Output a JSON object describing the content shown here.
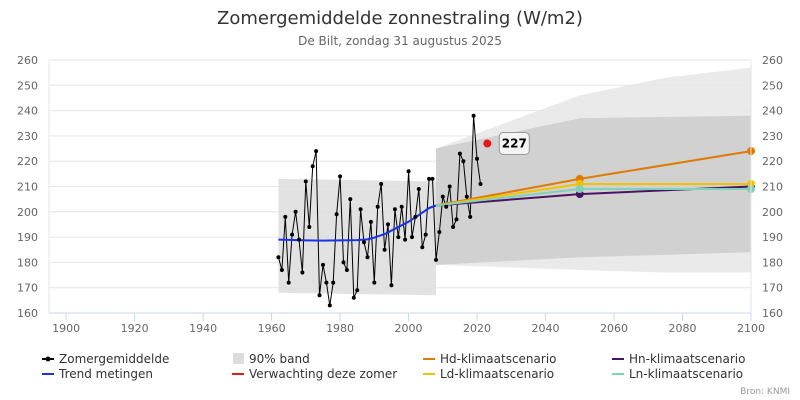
{
  "chart_data": {
    "type": "line",
    "title": "Zomergemiddelde zonnestraling (W/m2)",
    "subtitle": "De Bilt, zondag 31 augustus 2025",
    "xlim": [
      1895,
      2100
    ],
    "ylim": [
      160,
      260
    ],
    "x_ticks": [
      1900,
      1920,
      1940,
      1960,
      1980,
      2000,
      2020,
      2040,
      2060,
      2080,
      2100
    ],
    "y_ticks": [
      160,
      170,
      180,
      190,
      200,
      210,
      220,
      230,
      240,
      250,
      260
    ],
    "series": [
      {
        "name": "Zomergemiddelde",
        "color": "#000000",
        "x": [
          1962,
          1963,
          1964,
          1965,
          1966,
          1967,
          1968,
          1969,
          1970,
          1971,
          1972,
          1973,
          1974,
          1975,
          1976,
          1977,
          1978,
          1979,
          1980,
          1981,
          1982,
          1983,
          1984,
          1985,
          1986,
          1987,
          1988,
          1989,
          1990,
          1991,
          1992,
          1993,
          1994,
          1995,
          1996,
          1997,
          1998,
          1999,
          2000,
          2001,
          2002,
          2003,
          2004,
          2005,
          2006,
          2007,
          2008,
          2009,
          2010,
          2011,
          2012,
          2013,
          2014,
          2015,
          2016,
          2017,
          2018,
          2019,
          2020,
          2021,
          2022
        ],
        "values": [
          182,
          177,
          198,
          172,
          191,
          200,
          189,
          176,
          212,
          194,
          218,
          224,
          167,
          179,
          172,
          163,
          172,
          199,
          214,
          180,
          177,
          205,
          166,
          169,
          201,
          188,
          182,
          196,
          172,
          202,
          211,
          185,
          195,
          171,
          201,
          190,
          202,
          189,
          216,
          190,
          198,
          209,
          186,
          191,
          213,
          213,
          181,
          192,
          206,
          202,
          210,
          194,
          197,
          223,
          220,
          206,
          198,
          238,
          221,
          211,
          null
        ]
      },
      {
        "name": "Trend metingen",
        "color": "#1a33e6",
        "x": [
          1962,
          1965,
          1970,
          1975,
          1980,
          1985,
          1988,
          1990,
          1993,
          1996,
          2000,
          2003,
          2006,
          2008
        ],
        "values": [
          189,
          188.9,
          188.7,
          188.6,
          188.7,
          188.8,
          189.1,
          189.8,
          191.2,
          193.3,
          196.1,
          198.7,
          201.5,
          202.5
        ]
      },
      {
        "name": "Hd-klimaatscenario",
        "color": "#e07b00",
        "x": [
          2008,
          2050,
          2100
        ],
        "values": [
          202.5,
          213,
          224
        ]
      },
      {
        "name": "Hn-klimaatscenario",
        "color": "#4b1463",
        "x": [
          2008,
          2050,
          2100
        ],
        "values": [
          202.5,
          207,
          210
        ]
      },
      {
        "name": "Ld-klimaatscenario",
        "color": "#f2c200",
        "x": [
          2008,
          2050,
          2100
        ],
        "values": [
          202.5,
          211,
          211
        ]
      },
      {
        "name": "Ln-klimaatscenario",
        "color": "#7fd1b9",
        "x": [
          2008,
          2050,
          2100
        ],
        "values": [
          202.5,
          209,
          209
        ]
      }
    ],
    "bands": [
      {
        "name": "90% band metingen",
        "color": "#dddddd",
        "x": [
          1962,
          2008
        ],
        "lower": [
          168,
          167
        ],
        "upper": [
          213,
          212
        ]
      },
      {
        "name": "90% band scenario",
        "color": "#cccccc",
        "x": [
          2008,
          2050,
          2100
        ],
        "lower": [
          179,
          182,
          184
        ],
        "upper": [
          225,
          237,
          238
        ]
      },
      {
        "name": "90% band scenario (wide)",
        "color": "#e6e6e6",
        "x": [
          2008,
          2030,
          2050,
          2075,
          2100
        ],
        "lower": [
          179,
          178,
          177,
          176,
          176
        ],
        "upper": [
          225,
          236,
          246,
          253,
          257
        ]
      }
    ],
    "forecast": {
      "name": "Verwachting deze zomer",
      "color": "#e31a1c",
      "x": 2023,
      "value": 227,
      "label": "227"
    },
    "legend": [
      {
        "label": "Zomergemiddelde",
        "kind": "line-marker",
        "color": "#000000"
      },
      {
        "label": "90% band",
        "kind": "box",
        "color": "#dddddd"
      },
      {
        "label": "Hd-klimaatscenario",
        "kind": "line",
        "color": "#e07b00"
      },
      {
        "label": "Hn-klimaatscenario",
        "kind": "line",
        "color": "#4b1463"
      },
      {
        "label": "Trend metingen",
        "kind": "line",
        "color": "#1a33e6"
      },
      {
        "label": "Verwachting deze zomer",
        "kind": "line",
        "color": "#e31a1c"
      },
      {
        "label": "Ld-klimaatscenario",
        "kind": "line",
        "color": "#f2c200"
      },
      {
        "label": "Ln-klimaatscenario",
        "kind": "line",
        "color": "#7fd1b9"
      }
    ],
    "credit": "Bron: KNMI"
  }
}
